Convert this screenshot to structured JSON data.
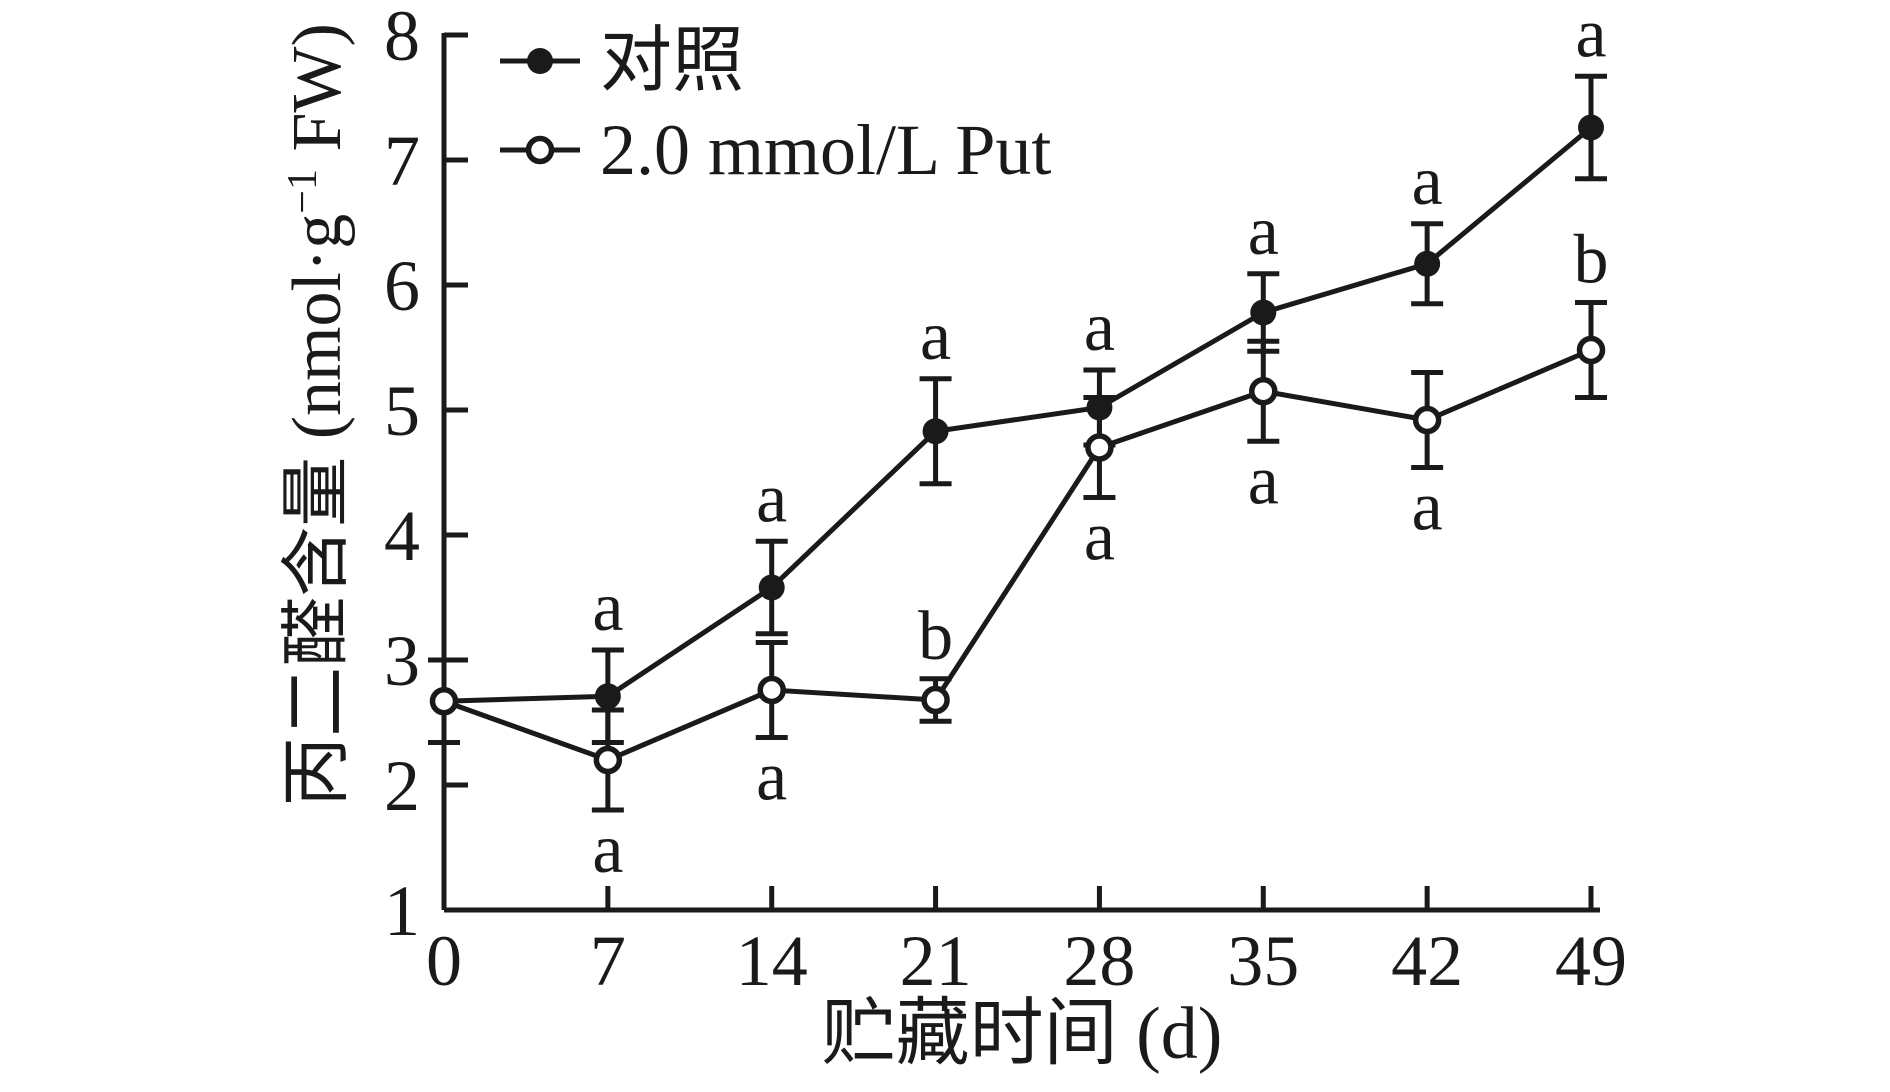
{
  "figure": {
    "background": "#ffffff",
    "ink_color": "#1a1a1a"
  },
  "chart_data": {
    "type": "line",
    "x": [
      0,
      7,
      14,
      21,
      28,
      35,
      42,
      49
    ],
    "xlabel": "贮藏时间 (d)",
    "ylabel": "丙二醛含量 (nmol·g⁻¹ FW)",
    "ylabel_parts": {
      "pre": "丙二醛含量 (nmol·g",
      "sup": "−1",
      "post": " FW)"
    },
    "xlim": [
      0,
      49
    ],
    "ylim": [
      1,
      8
    ],
    "yticks": [
      1,
      2,
      3,
      4,
      5,
      6,
      7,
      8
    ],
    "grid": false,
    "legend_position": "top-left",
    "series": [
      {
        "name": "对照",
        "key": "control",
        "marker": "filled-circle",
        "values": [
          2.67,
          2.71,
          3.58,
          4.83,
          5.02,
          5.78,
          6.17,
          7.26
        ],
        "errors": [
          0.33,
          0.37,
          0.37,
          0.42,
          0.3,
          0.31,
          0.32,
          0.41
        ],
        "letters": [
          "",
          "a",
          "a",
          "a",
          "a",
          "a",
          "a",
          "a"
        ],
        "letter_pos": [
          "",
          "above",
          "above",
          "above",
          "above",
          "above",
          "above",
          "above"
        ]
      },
      {
        "name": "2.0 mmol/L Put",
        "key": "put",
        "marker": "open-circle",
        "values": [
          2.67,
          2.2,
          2.76,
          2.68,
          4.7,
          5.15,
          4.92,
          5.48
        ],
        "errors": [
          0.33,
          0.4,
          0.38,
          0.17,
          0.4,
          0.4,
          0.38,
          0.38
        ],
        "letters": [
          "",
          "a",
          "a",
          "b",
          "a",
          "a",
          "a",
          "b"
        ],
        "letter_pos": [
          "",
          "below",
          "below",
          "above",
          "below",
          "below",
          "below",
          "above"
        ]
      }
    ]
  }
}
